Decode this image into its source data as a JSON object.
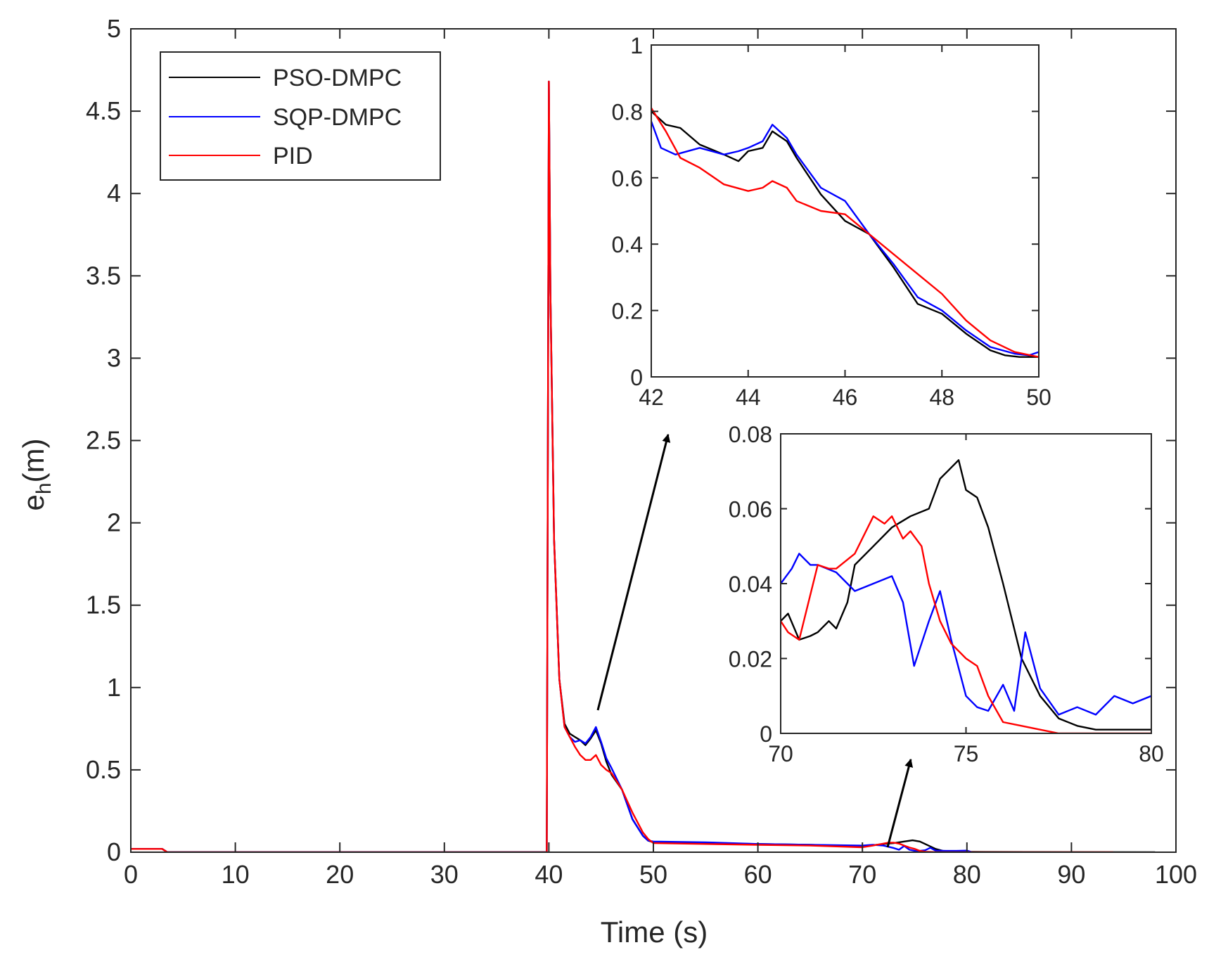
{
  "chart_data": [
    {
      "id": "main",
      "type": "line",
      "title": "",
      "xlabel": "Time (s)",
      "ylabel_main": "e",
      "ylabel_sub": "h",
      "ylabel_unit": "(m)",
      "xlim": [
        0,
        100
      ],
      "ylim": [
        0,
        5
      ],
      "xticks": [
        0,
        10,
        20,
        30,
        40,
        50,
        60,
        70,
        80,
        90,
        100
      ],
      "yticks": [
        0,
        0.5,
        1,
        1.5,
        2,
        2.5,
        3,
        3.5,
        4,
        4.5,
        5
      ],
      "legend_position": "top-left",
      "series": [
        {
          "name": "PSO-DMPC",
          "color": "#000000",
          "x": [
            0,
            3,
            3.5,
            39.8,
            40.0,
            40.15,
            40.5,
            41,
            41.5,
            42,
            42.5,
            43,
            43.5,
            44,
            44.5,
            45,
            45.5,
            46,
            47,
            48,
            49,
            49.5,
            50,
            55,
            60,
            65,
            70,
            72,
            73,
            74,
            74.8,
            75.5,
            76,
            77,
            78,
            80,
            98
          ],
          "y": [
            0.02,
            0.02,
            0.0,
            0.0,
            4.68,
            3.4,
            1.9,
            1.05,
            0.78,
            0.72,
            0.7,
            0.68,
            0.65,
            0.69,
            0.74,
            0.66,
            0.55,
            0.47,
            0.38,
            0.2,
            0.1,
            0.07,
            0.06,
            0.055,
            0.05,
            0.045,
            0.035,
            0.05,
            0.055,
            0.065,
            0.072,
            0.065,
            0.05,
            0.02,
            0.003,
            0.002,
            0.0
          ]
        },
        {
          "name": "SQP-DMPC",
          "color": "#0000ff",
          "x": [
            0,
            3,
            3.5,
            39.8,
            40.0,
            40.15,
            40.5,
            41,
            41.5,
            42,
            42.5,
            43,
            43.5,
            44,
            44.5,
            45,
            45.5,
            46,
            47,
            48,
            49,
            49.5,
            50,
            55,
            60,
            65,
            70,
            71,
            72,
            73,
            73.5,
            74,
            74.5,
            75.2,
            76,
            76.5,
            77,
            78,
            79,
            80,
            80.5
          ],
          "y": [
            0.02,
            0.02,
            0.0,
            0.0,
            4.68,
            3.4,
            1.9,
            1.05,
            0.76,
            0.7,
            0.67,
            0.68,
            0.66,
            0.7,
            0.76,
            0.67,
            0.57,
            0.51,
            0.38,
            0.2,
            0.1,
            0.07,
            0.065,
            0.06,
            0.05,
            0.045,
            0.04,
            0.045,
            0.04,
            0.025,
            0.015,
            0.038,
            0.015,
            0.006,
            0.012,
            0.027,
            0.01,
            0.008,
            0.008,
            0.01,
            0.0
          ]
        },
        {
          "name": "PID",
          "color": "#ff0000",
          "x": [
            0,
            3,
            3.5,
            39.8,
            40.0,
            40.15,
            40.5,
            41,
            41.5,
            42,
            42.5,
            43,
            43.5,
            44,
            44.5,
            45,
            45.5,
            46,
            47,
            48,
            49,
            49.5,
            50,
            55,
            60,
            65,
            70,
            71,
            72.5,
            73,
            73.5,
            74,
            74.5,
            75,
            75.5,
            76,
            77,
            80,
            94
          ],
          "y": [
            0.02,
            0.02,
            0.0,
            0.0,
            4.68,
            3.4,
            1.9,
            1.05,
            0.76,
            0.7,
            0.64,
            0.59,
            0.56,
            0.56,
            0.59,
            0.53,
            0.5,
            0.48,
            0.38,
            0.24,
            0.12,
            0.08,
            0.055,
            0.05,
            0.045,
            0.04,
            0.03,
            0.04,
            0.058,
            0.058,
            0.052,
            0.04,
            0.028,
            0.02,
            0.008,
            0.003,
            0.001,
            0.0,
            0.0
          ]
        }
      ]
    },
    {
      "id": "inset-1",
      "type": "line",
      "xlim": [
        42,
        50
      ],
      "ylim": [
        0,
        1
      ],
      "xticks": [
        42,
        44,
        46,
        48,
        50
      ],
      "yticks": [
        0,
        0.2,
        0.4,
        0.6,
        0.8,
        1
      ],
      "series": [
        {
          "name": "PSO-DMPC",
          "color": "#000000",
          "x": [
            42,
            42.3,
            42.6,
            43,
            43.5,
            43.8,
            44,
            44.3,
            44.5,
            44.8,
            45,
            45.5,
            46,
            46.5,
            47,
            47.5,
            48,
            48.5,
            49,
            49.3,
            49.6,
            50
          ],
          "y": [
            0.8,
            0.76,
            0.75,
            0.7,
            0.67,
            0.65,
            0.68,
            0.69,
            0.74,
            0.71,
            0.66,
            0.55,
            0.47,
            0.43,
            0.33,
            0.22,
            0.19,
            0.13,
            0.08,
            0.065,
            0.06,
            0.06
          ]
        },
        {
          "name": "SQP-DMPC",
          "color": "#0000ff",
          "x": [
            42,
            42.2,
            42.5,
            43,
            43.5,
            43.8,
            44,
            44.3,
            44.5,
            44.8,
            45,
            45.5,
            46,
            46.5,
            47,
            47.5,
            48,
            48.5,
            49,
            49.5,
            49.8,
            50
          ],
          "y": [
            0.77,
            0.69,
            0.67,
            0.69,
            0.67,
            0.68,
            0.69,
            0.71,
            0.76,
            0.72,
            0.67,
            0.57,
            0.53,
            0.43,
            0.34,
            0.24,
            0.2,
            0.14,
            0.09,
            0.07,
            0.065,
            0.075
          ]
        },
        {
          "name": "PID",
          "color": "#ff0000",
          "x": [
            42,
            42.3,
            42.6,
            43,
            43.5,
            44,
            44.3,
            44.5,
            44.8,
            45,
            45.5,
            46,
            46.5,
            47,
            47.5,
            48,
            48.5,
            49,
            49.5,
            50
          ],
          "y": [
            0.81,
            0.74,
            0.66,
            0.63,
            0.58,
            0.56,
            0.57,
            0.59,
            0.57,
            0.53,
            0.5,
            0.49,
            0.43,
            0.37,
            0.31,
            0.25,
            0.17,
            0.11,
            0.075,
            0.06
          ]
        }
      ]
    },
    {
      "id": "inset-2",
      "type": "line",
      "xlim": [
        70,
        80
      ],
      "ylim": [
        0,
        0.08
      ],
      "xticks": [
        70,
        75,
        80
      ],
      "yticks": [
        0,
        0.02,
        0.04,
        0.06,
        0.08
      ],
      "series": [
        {
          "name": "PSO-DMPC",
          "color": "#000000",
          "x": [
            70,
            70.2,
            70.5,
            70.8,
            71,
            71.3,
            71.5,
            71.8,
            72,
            72.5,
            73,
            73.5,
            74,
            74.3,
            74.5,
            74.8,
            75,
            75.3,
            75.6,
            76,
            76.5,
            77,
            77.5,
            78,
            78.5,
            80
          ],
          "y": [
            0.03,
            0.032,
            0.025,
            0.026,
            0.027,
            0.03,
            0.028,
            0.035,
            0.045,
            0.05,
            0.055,
            0.058,
            0.06,
            0.068,
            0.07,
            0.073,
            0.065,
            0.063,
            0.055,
            0.04,
            0.02,
            0.01,
            0.004,
            0.002,
            0.001,
            0.001
          ]
        },
        {
          "name": "SQP-DMPC",
          "color": "#0000ff",
          "x": [
            70,
            70.3,
            70.5,
            70.8,
            71,
            71.5,
            72,
            72.5,
            73,
            73.3,
            73.6,
            74,
            74.3,
            74.6,
            75,
            75.3,
            75.6,
            76,
            76.3,
            76.6,
            77,
            77.5,
            78,
            78.5,
            79,
            79.5,
            80
          ],
          "y": [
            0.04,
            0.044,
            0.048,
            0.045,
            0.045,
            0.043,
            0.038,
            0.04,
            0.042,
            0.035,
            0.018,
            0.03,
            0.038,
            0.025,
            0.01,
            0.007,
            0.006,
            0.013,
            0.006,
            0.027,
            0.012,
            0.005,
            0.007,
            0.005,
            0.01,
            0.008,
            0.01
          ]
        },
        {
          "name": "PID",
          "color": "#ff0000",
          "x": [
            70,
            70.2,
            70.5,
            71,
            71.3,
            71.5,
            72,
            72.5,
            72.8,
            73,
            73.3,
            73.5,
            73.8,
            74,
            74.3,
            74.6,
            75,
            75.3,
            75.6,
            76,
            76.5,
            77,
            77.5,
            80
          ],
          "y": [
            0.03,
            0.027,
            0.025,
            0.045,
            0.044,
            0.044,
            0.048,
            0.058,
            0.056,
            0.058,
            0.052,
            0.054,
            0.05,
            0.04,
            0.03,
            0.024,
            0.02,
            0.018,
            0.01,
            0.003,
            0.002,
            0.001,
            0.0,
            0.0
          ]
        }
      ]
    }
  ]
}
